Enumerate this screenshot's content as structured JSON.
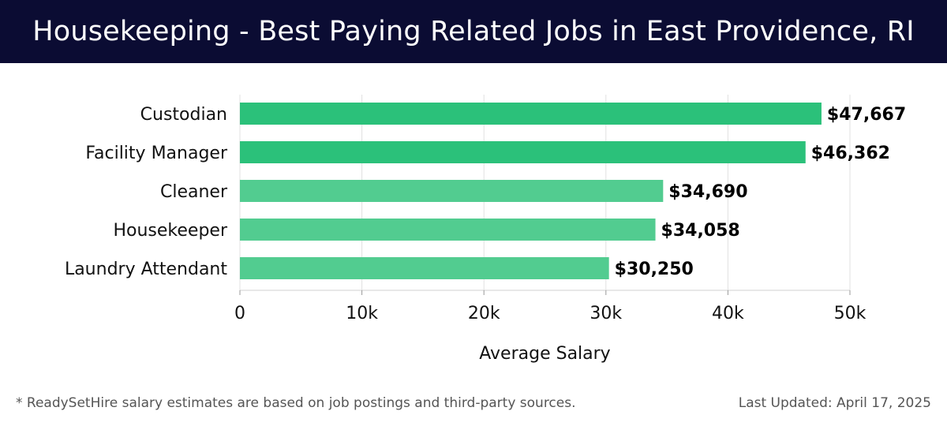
{
  "title": "Housekeeping - Best Paying Related Jobs in East Providence, RI",
  "footer": {
    "note": "* ReadySetHire salary estimates are based on job postings and third-party sources.",
    "updated": "Last Updated: April 17, 2025"
  },
  "colors": {
    "header_bg": "#0b0c33",
    "bar_top": "#2bc17a",
    "bar_other": "#52cc90",
    "grid": "#e0e0e0"
  },
  "chart_data": {
    "type": "bar",
    "orientation": "horizontal",
    "categories": [
      "Custodian",
      "Facility Manager",
      "Cleaner",
      "Housekeeper",
      "Laundry Attendant"
    ],
    "values": [
      47667,
      46362,
      34690,
      34058,
      30250
    ],
    "value_labels": [
      "$47,667",
      "$46,362",
      "$34,690",
      "$34,058",
      "$30,250"
    ],
    "xlabel": "Average Salary",
    "ylabel": "",
    "xlim": [
      0,
      50000
    ],
    "xticks": [
      0,
      10000,
      20000,
      30000,
      40000,
      50000
    ],
    "xtick_labels": [
      "0",
      "10k",
      "20k",
      "30k",
      "40k",
      "50k"
    ],
    "grid": true
  }
}
